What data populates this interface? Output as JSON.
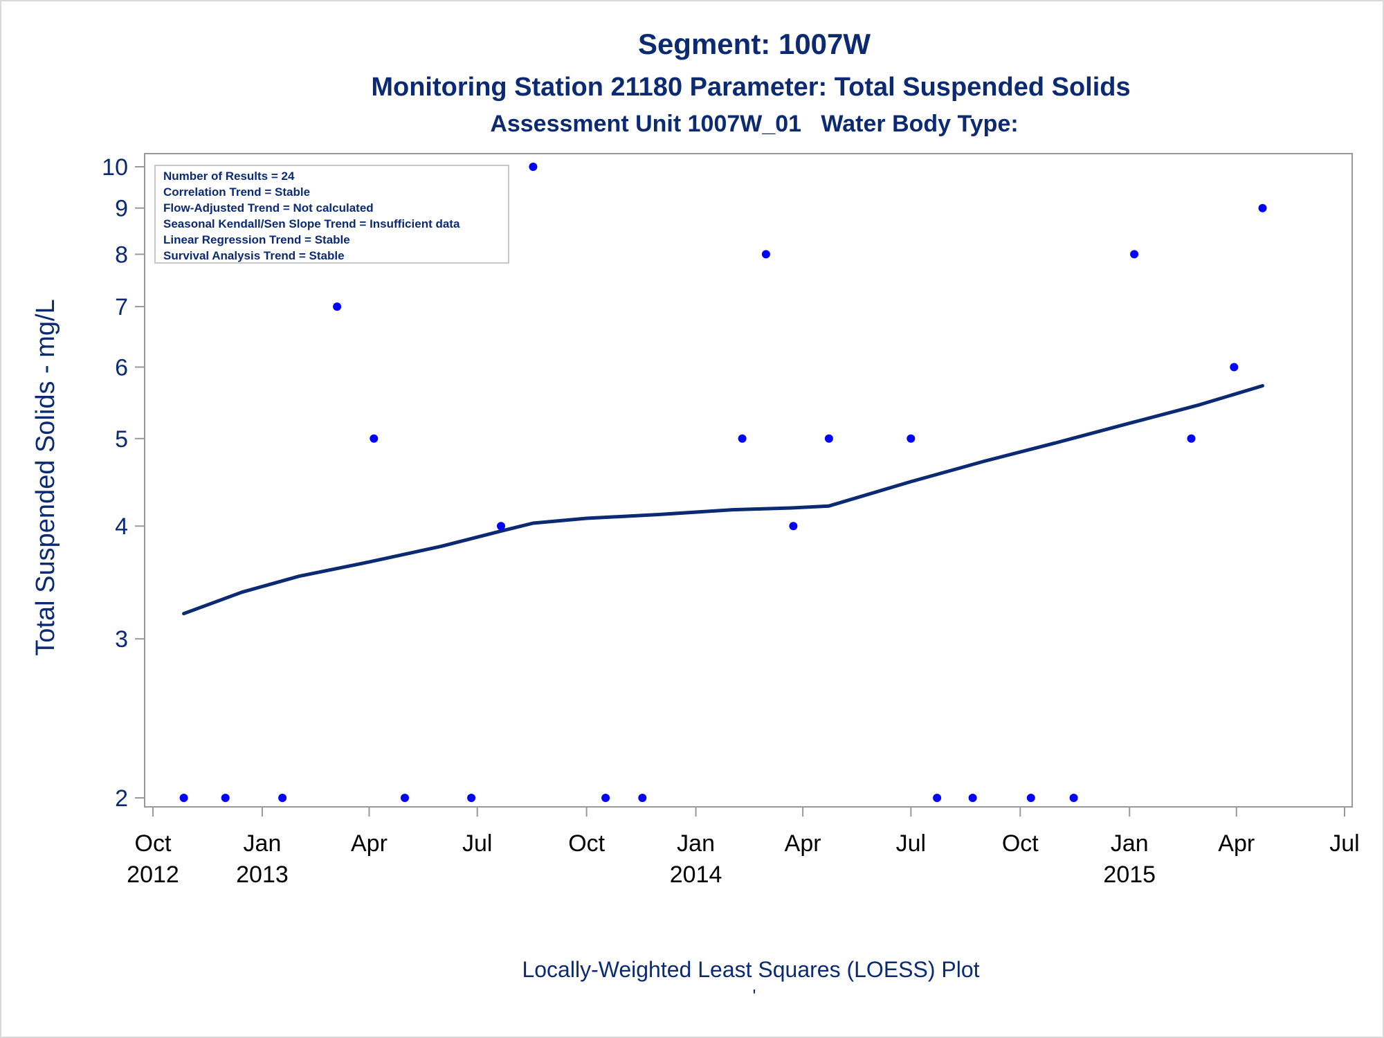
{
  "colors": {
    "title": "#0b2a72",
    "axis_text": "#0b2a72",
    "tick_text": "#000000",
    "points": "#0000ff",
    "loess_line": "#0b2a72",
    "frame": "#999999"
  },
  "chart_data": {
    "type": "scatter",
    "title": "Segment: 1007W",
    "subtitle": "Monitoring Station 21180 Parameter: Total Suspended Solids",
    "subtitle2": "Assessment Unit 1007W_01   Water Body Type:",
    "xlabel": "",
    "ylabel": "Total Suspended Solids - mg/L",
    "footnote": "Locally-Weighted Least Squares (LOESS) Plot",
    "footnote2": "'",
    "y_scale": "log",
    "ylim": [
      2,
      10
    ],
    "y_ticks": [
      2,
      3,
      4,
      5,
      6,
      7,
      8,
      9,
      10
    ],
    "xlim": [
      "2012-10-01",
      "2015-07-01"
    ],
    "x_ticks": [
      {
        "date": "2012-10-01",
        "line1": "Oct",
        "line2": "2012"
      },
      {
        "date": "2013-01-01",
        "line1": "Jan",
        "line2": "2013"
      },
      {
        "date": "2013-04-01",
        "line1": "Apr",
        "line2": ""
      },
      {
        "date": "2013-07-01",
        "line1": "Jul",
        "line2": ""
      },
      {
        "date": "2013-10-01",
        "line1": "Oct",
        "line2": ""
      },
      {
        "date": "2014-01-01",
        "line1": "Jan",
        "line2": "2014"
      },
      {
        "date": "2014-04-01",
        "line1": "Apr",
        "line2": ""
      },
      {
        "date": "2014-07-01",
        "line1": "Jul",
        "line2": ""
      },
      {
        "date": "2014-10-01",
        "line1": "Oct",
        "line2": ""
      },
      {
        "date": "2015-01-01",
        "line1": "Jan",
        "line2": "2015"
      },
      {
        "date": "2015-04-01",
        "line1": "Apr",
        "line2": ""
      },
      {
        "date": "2015-07-01",
        "line1": "Jul",
        "line2": ""
      }
    ],
    "grid": false,
    "legend_position": "top-left",
    "stats_box": [
      "Number of Results = 24",
      "Correlation Trend = Stable",
      "Flow-Adjusted Trend = Not calculated",
      "Seasonal Kendall/Sen Slope Trend = Insufficient data",
      "Linear Regression Trend = Stable",
      "Survival Analysis Trend = Stable"
    ],
    "points": [
      {
        "x": "2012-10-27",
        "y": 2
      },
      {
        "x": "2012-12-01",
        "y": 2
      },
      {
        "x": "2013-01-18",
        "y": 2
      },
      {
        "x": "2013-03-05",
        "y": 7
      },
      {
        "x": "2013-04-05",
        "y": 5
      },
      {
        "x": "2013-05-01",
        "y": 2
      },
      {
        "x": "2013-06-26",
        "y": 2
      },
      {
        "x": "2013-07-21",
        "y": 4
      },
      {
        "x": "2013-08-17",
        "y": 10
      },
      {
        "x": "2013-10-17",
        "y": 2
      },
      {
        "x": "2013-11-17",
        "y": 2
      },
      {
        "x": "2014-02-09",
        "y": 5
      },
      {
        "x": "2014-03-01",
        "y": 8
      },
      {
        "x": "2014-03-24",
        "y": 4
      },
      {
        "x": "2014-04-23",
        "y": 5
      },
      {
        "x": "2014-07-01",
        "y": 5
      },
      {
        "x": "2014-07-23",
        "y": 2
      },
      {
        "x": "2014-08-22",
        "y": 2
      },
      {
        "x": "2014-10-10",
        "y": 2
      },
      {
        "x": "2014-11-15",
        "y": 2
      },
      {
        "x": "2015-01-05",
        "y": 8
      },
      {
        "x": "2015-02-22",
        "y": 5
      },
      {
        "x": "2015-03-30",
        "y": 6
      },
      {
        "x": "2015-04-23",
        "y": 9
      }
    ],
    "loess": [
      {
        "x": "2012-10-27",
        "y": 3.2
      },
      {
        "x": "2012-12-15",
        "y": 3.38
      },
      {
        "x": "2013-02-01",
        "y": 3.52
      },
      {
        "x": "2013-04-01",
        "y": 3.65
      },
      {
        "x": "2013-06-01",
        "y": 3.8
      },
      {
        "x": "2013-07-21",
        "y": 3.95
      },
      {
        "x": "2013-08-17",
        "y": 4.03
      },
      {
        "x": "2013-10-01",
        "y": 4.08
      },
      {
        "x": "2013-12-01",
        "y": 4.12
      },
      {
        "x": "2014-02-01",
        "y": 4.17
      },
      {
        "x": "2014-03-24",
        "y": 4.19
      },
      {
        "x": "2014-04-23",
        "y": 4.21
      },
      {
        "x": "2014-07-01",
        "y": 4.48
      },
      {
        "x": "2014-09-01",
        "y": 4.72
      },
      {
        "x": "2014-11-01",
        "y": 4.95
      },
      {
        "x": "2015-01-01",
        "y": 5.2
      },
      {
        "x": "2015-03-01",
        "y": 5.45
      },
      {
        "x": "2015-04-23",
        "y": 5.72
      }
    ]
  }
}
